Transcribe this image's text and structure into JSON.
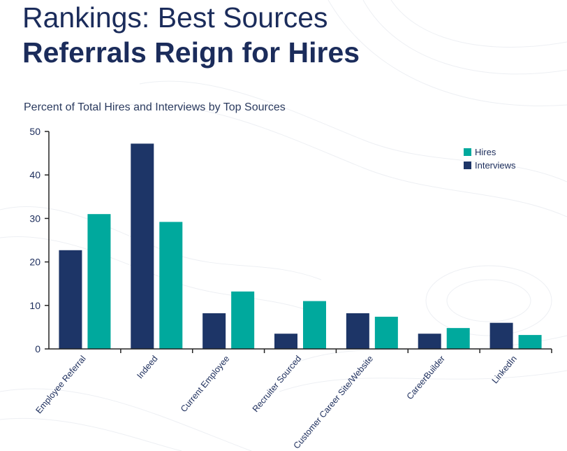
{
  "header": {
    "title_line1": "Rankings: Best Sources",
    "title_line2": "Referrals Reign for Hires"
  },
  "colors": {
    "hires": "#00a99d",
    "interviews": "#1d3567",
    "axis": "#222222",
    "text": "#1b2c5b"
  },
  "chart_data": {
    "type": "bar",
    "title": "Percent of Total Hires and Interviews by Top Sources",
    "xlabel": "",
    "ylabel": "",
    "ylim": [
      0,
      50
    ],
    "yticks": [
      0,
      10,
      20,
      30,
      40,
      50
    ],
    "grid": false,
    "legend_position": "top-right",
    "categories": [
      "Employee Referral",
      "Indeed",
      "Current Employee",
      "Recruiter Sourced",
      "Customer Career Site/Website",
      "CareerBuilder",
      "LinkedIn"
    ],
    "series": [
      {
        "name": "Interviews",
        "values": [
          22.7,
          47.2,
          8.2,
          3.5,
          8.2,
          3.5,
          6.0
        ]
      },
      {
        "name": "Hires",
        "values": [
          31.0,
          29.2,
          13.2,
          11.0,
          7.4,
          4.8,
          3.2
        ]
      }
    ],
    "legend": [
      "Hires",
      "Interviews"
    ]
  }
}
